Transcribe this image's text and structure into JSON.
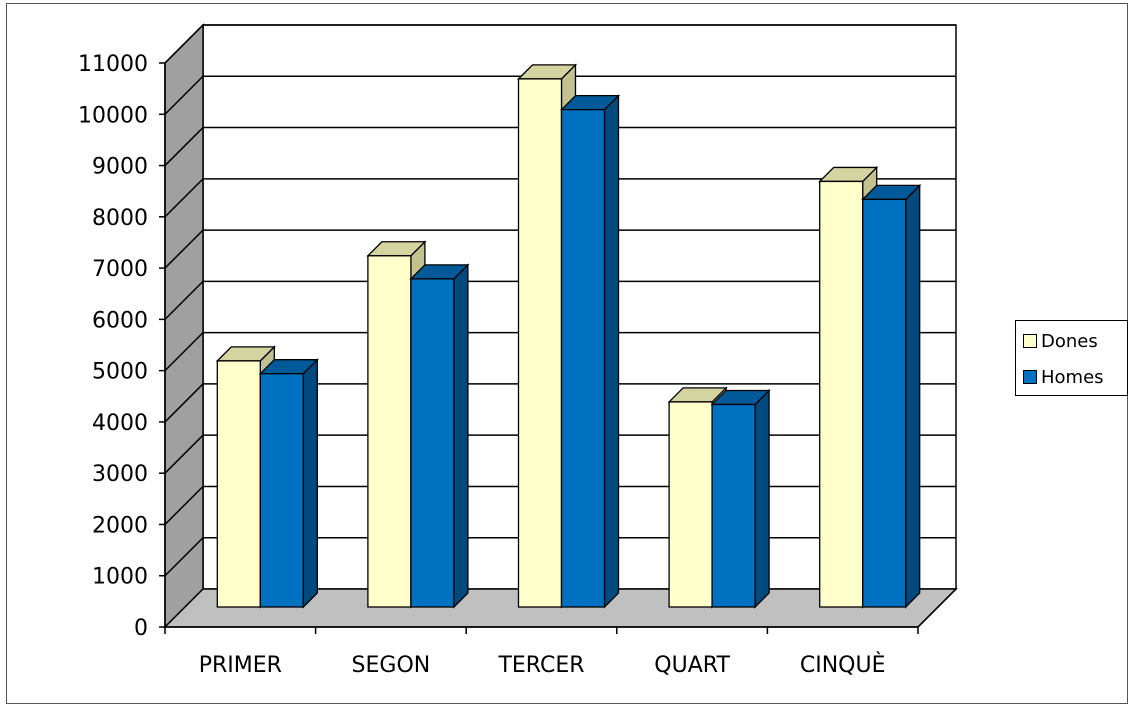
{
  "chart_data": {
    "type": "bar",
    "categories": [
      "PRIMER",
      "SEGON",
      "TERCER",
      "QUART",
      "CINQUÈ"
    ],
    "series": [
      {
        "name": "Dones",
        "values": [
          4800,
          6850,
          10300,
          4000,
          8300
        ],
        "color": "#FFFFCC"
      },
      {
        "name": "Homes",
        "values": [
          4550,
          6400,
          9700,
          3950,
          7950
        ],
        "color": "#0070C0"
      }
    ],
    "yticks": [
      "0",
      "1000",
      "2000",
      "3000",
      "4000",
      "5000",
      "6000",
      "7000",
      "8000",
      "9000",
      "10000",
      "11000"
    ],
    "ylim": [
      0,
      11000
    ],
    "title": "",
    "xlabel": "",
    "ylabel": "",
    "grid": true,
    "legend": "right",
    "three_d": true,
    "colors": {
      "wall": "#ffffff",
      "side_wall": "#a0a0a0",
      "floor": "#c0c0c0",
      "dones_top": "#d4d4a0",
      "dones_side": "#c2c290",
      "homes_top": "#005a99",
      "homes_side": "#004a80"
    }
  }
}
